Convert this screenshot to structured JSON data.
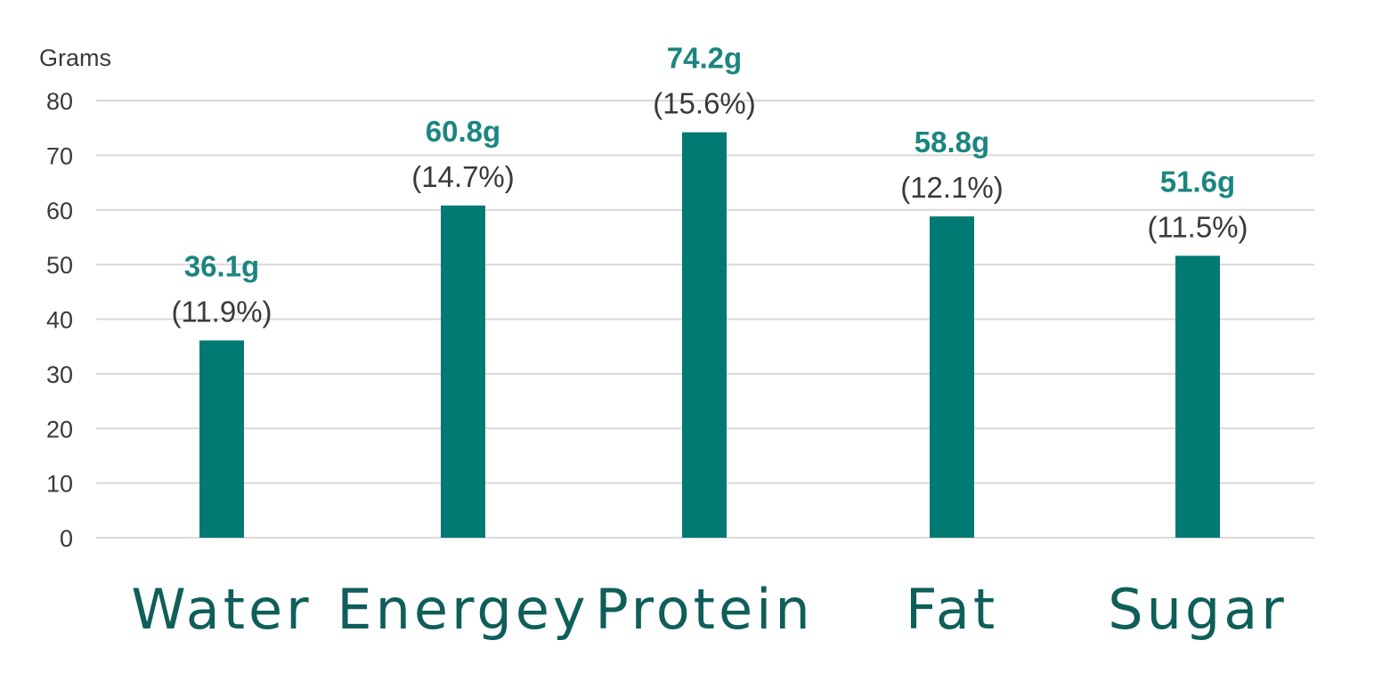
{
  "chart_data": {
    "type": "bar",
    "ylabel": "Grams",
    "ylim": [
      0,
      80
    ],
    "yticks": [
      "0",
      "10",
      "20",
      "30",
      "40",
      "50",
      "60",
      "70",
      "80"
    ],
    "categories": [
      "Water",
      "Energey",
      "Protein",
      "Fat",
      "Sugar"
    ],
    "values": [
      36.1,
      60.8,
      74.2,
      58.8,
      51.6
    ],
    "value_labels": [
      "36.1g",
      "60.8g",
      "74.2g",
      "58.8g",
      "51.6g"
    ],
    "percent_labels": [
      "(11.9%)",
      "(14.7%)",
      "(15.6%)",
      "(12.1%)",
      "(11.5%)"
    ],
    "grid": true,
    "legend": "none",
    "colors": {
      "bar": "#007a73",
      "category_text": "#0f5e5a",
      "value_text": "#1c8580"
    }
  }
}
